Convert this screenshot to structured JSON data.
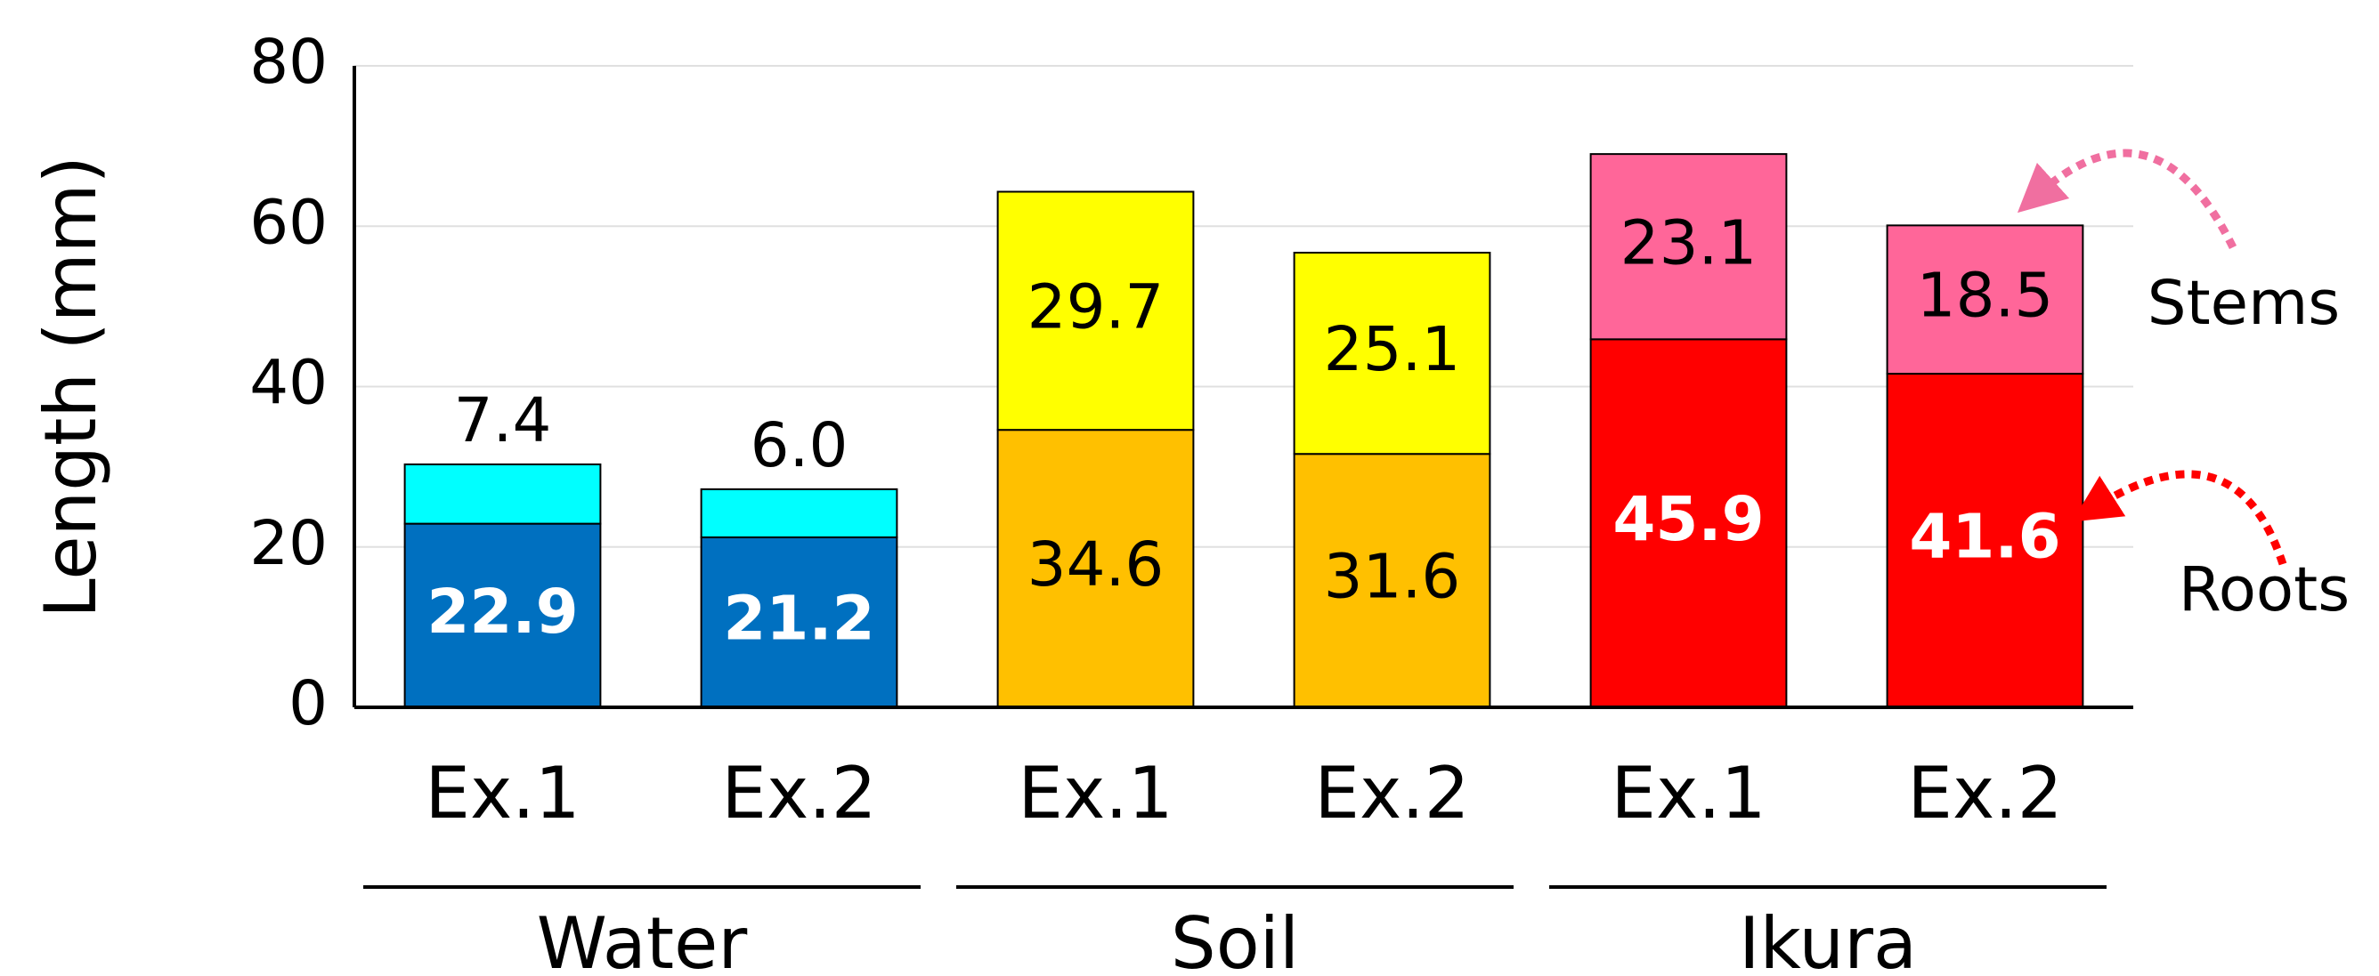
{
  "chart_data": {
    "type": "bar",
    "stacked": true,
    "y_label": "Length (mm)",
    "categories": [
      "Ex.1",
      "Ex.2",
      "Ex.1",
      "Ex.2",
      "Ex.1",
      "Ex.2"
    ],
    "groups": [
      "Water",
      "Soil",
      "Ikura"
    ],
    "series": [
      {
        "name": "Roots",
        "values": [
          22.9,
          21.2,
          34.6,
          31.6,
          45.9,
          41.6
        ],
        "colors": [
          "#0070c0",
          "#0070c0",
          "#ffc000",
          "#ffc000",
          "#ff0000",
          "#ff0000"
        ],
        "label_colors": [
          "#ffffff",
          "#ffffff",
          "#000000",
          "#000000",
          "#ffffff",
          "#ffffff"
        ],
        "annotation_color": "#ff0000"
      },
      {
        "name": "Stems",
        "values": [
          7.4,
          6.0,
          29.7,
          25.1,
          23.1,
          18.5
        ],
        "value_labels": [
          "7.4",
          "6.0",
          "29.7",
          "25.1",
          "23.1",
          "18.5"
        ],
        "colors": [
          "#00ffff",
          "#00ffff",
          "#ffff00",
          "#ffff00",
          "#ff6699",
          "#ff6699"
        ],
        "label_colors": [
          "#000000",
          "#000000",
          "#000000",
          "#000000",
          "#000000",
          "#000000"
        ],
        "annotation_color": "#f06fa0"
      }
    ],
    "ylim": [
      0,
      80
    ],
    "yticks": [
      0,
      20,
      40,
      60,
      80
    ],
    "grid": true
  }
}
